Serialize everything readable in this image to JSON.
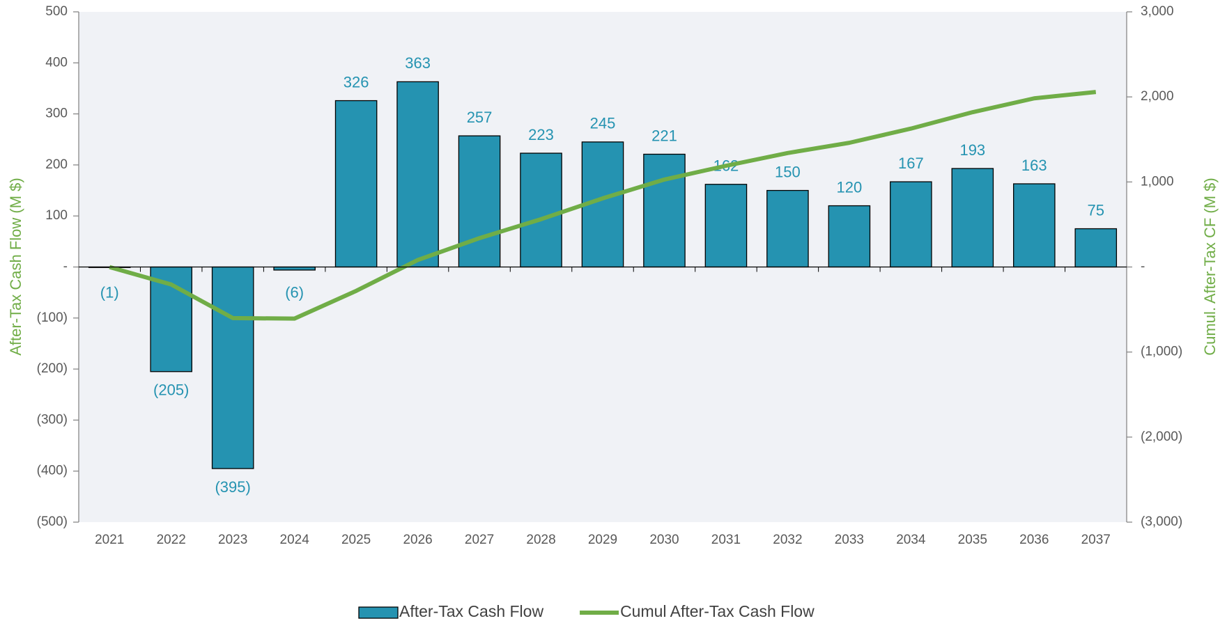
{
  "chart_data": {
    "type": "bar",
    "categories": [
      "2021",
      "2022",
      "2023",
      "2024",
      "2025",
      "2026",
      "2027",
      "2028",
      "2029",
      "2030",
      "2031",
      "2032",
      "2033",
      "2034",
      "2035",
      "2036",
      "2037"
    ],
    "series": [
      {
        "name": "After-Tax Cash Flow",
        "type": "bar",
        "color": "#2593b1",
        "values": [
          -1,
          -205,
          -395,
          -6,
          326,
          363,
          257,
          223,
          245,
          221,
          162,
          150,
          120,
          167,
          193,
          163,
          75
        ],
        "value_labels": [
          "(1)",
          "(205)",
          "(395)",
          "(6)",
          "326",
          "363",
          "257",
          "223",
          "245",
          "221",
          "162",
          "150",
          "120",
          "167",
          "193",
          "163",
          "75"
        ]
      },
      {
        "name": "Cumul After-Tax Cash Flow",
        "type": "line",
        "axis": "y2",
        "color": "#70ad47",
        "values": [
          -1,
          -206,
          -601,
          -607,
          -281,
          82,
          339,
          562,
          807,
          1028,
          1190,
          1340,
          1460,
          1627,
          1820,
          1983,
          2058
        ]
      }
    ],
    "ylabel": "After-Tax Cash Flow (M $)",
    "y2label": "Cumul. After-Tax CF (M $)",
    "ylim": [
      -500,
      500
    ],
    "yticks": [
      500,
      400,
      300,
      200,
      100,
      {
        "value": 0,
        "label": "-"
      },
      {
        "value": -100,
        "label": "(100)"
      },
      {
        "value": -200,
        "label": "(200)"
      },
      {
        "value": -300,
        "label": "(300)"
      },
      {
        "value": -400,
        "label": "(400)"
      },
      {
        "value": -500,
        "label": "(500)"
      }
    ],
    "y2lim": [
      -3000,
      3000
    ],
    "y2ticks": [
      {
        "value": 3000,
        "label": "3,000"
      },
      {
        "value": 2000,
        "label": "2,000"
      },
      {
        "value": 1000,
        "label": "1,000"
      },
      {
        "value": 0,
        "label": "-"
      },
      {
        "value": -1000,
        "label": "(1,000)"
      },
      {
        "value": -2000,
        "label": "(2,000)"
      },
      {
        "value": -3000,
        "label": "(3,000)"
      }
    ],
    "legend": "bottom"
  }
}
